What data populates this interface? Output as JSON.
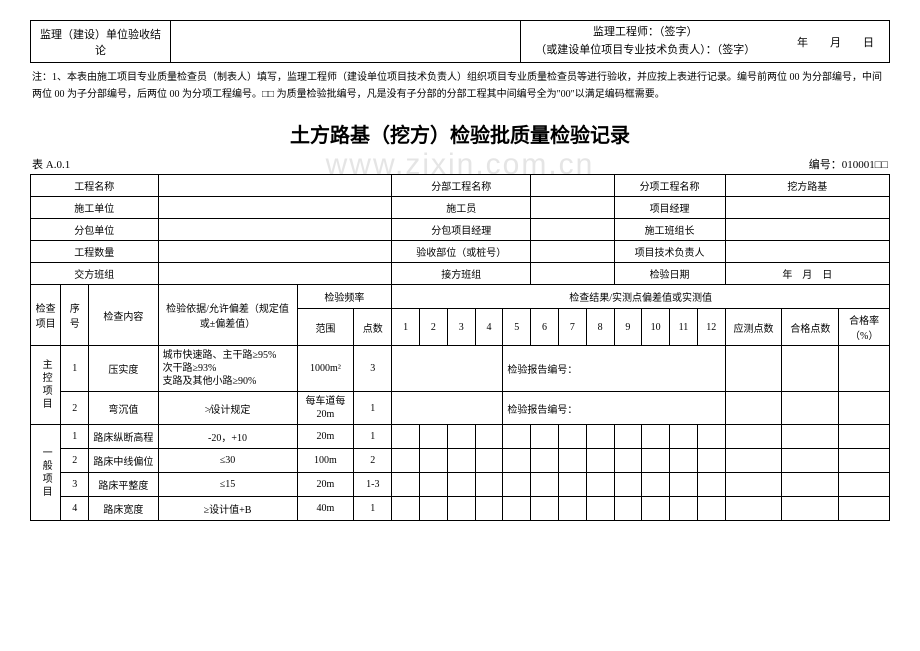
{
  "top_box": {
    "left_label": "监理（建设）单位验收结论",
    "right_line1": "监理工程师：（签字）",
    "right_line2": "（或建设单位项目专业技术负责人）：（签字）",
    "date_label": "年　　月　　日"
  },
  "note": "注：1、本表由施工项目专业质量检查员（制表人）填写，监理工程师（建设单位项目技术负责人）组织项目专业质量检查员等进行验收，并应按上表进行记录。编号前两位 00 为分部编号，中间两位 00 为子分部编号，后两位 00 为分项工程编号。□□ 为质量检验批编号，凡是没有子分部的分部工程其中间编号全为\"00\"以满足编码框需要。",
  "title": "土方路基（挖方）检验批质量检验记录",
  "watermark": "www.zixin.com.cn",
  "table_ref": "表 A.0.1",
  "serial_label": "编号：010001□□",
  "info": {
    "row1": {
      "c1": "工程名称",
      "c2": "分部工程名称",
      "c3": "分项工程名称",
      "c4": "挖方路基"
    },
    "row2": {
      "c1": "施工单位",
      "c2": "施工员",
      "c3": "项目经理",
      "c4": ""
    },
    "row3": {
      "c1": "分包单位",
      "c2": "分包项目经理",
      "c3": "施工班组长",
      "c4": ""
    },
    "row4": {
      "c1": "工程数量",
      "c2": "验收部位（或桩号）",
      "c3": "项目技术负责人",
      "c4": ""
    },
    "row5": {
      "c1": "交方班组",
      "c2": "接方班组",
      "c3": "检验日期",
      "c4": "年　月　日"
    }
  },
  "header": {
    "col_check_item": "检查项目",
    "col_seq": "序号",
    "col_content": "检查内容",
    "col_basis": "检验依据/允许偏差（规定值或±偏差值）",
    "col_freq": "检验频率",
    "col_freq_range": "范围",
    "col_freq_points": "点数",
    "col_results": "检查结果/实测点偏差值或实测值",
    "col_should": "应测点数",
    "col_pass": "合格点数",
    "col_rate": "合格率（%）",
    "nums": [
      "1",
      "2",
      "3",
      "4",
      "5",
      "6",
      "7",
      "8",
      "9",
      "10",
      "11",
      "12"
    ]
  },
  "section1": {
    "label": "主控项目",
    "rows": [
      {
        "seq": "1",
        "content": "压实度",
        "basis": "城市快速路、主干路≥95%\n次干路≥93%\n支路及其他小路≥90%",
        "range": "1000m²",
        "points": "3",
        "result_note": "检验报告编号："
      },
      {
        "seq": "2",
        "content": "弯沉值",
        "basis": "≯设计规定",
        "range": "每车道每 20m",
        "points": "1",
        "result_note": "检验报告编号："
      }
    ]
  },
  "section2": {
    "label": "一般项目",
    "rows": [
      {
        "seq": "1",
        "content": "路床纵断高程",
        "basis": "-20，+10",
        "range": "20m",
        "points": "1"
      },
      {
        "seq": "2",
        "content": "路床中线偏位",
        "basis": "≤30",
        "range": "100m",
        "points": "2"
      },
      {
        "seq": "3",
        "content": "路床平整度",
        "basis": "≤15",
        "range": "20m",
        "points": "1-3"
      },
      {
        "seq": "4",
        "content": "路床宽度",
        "basis": "≥设计值+B",
        "range": "40m",
        "points": "1"
      }
    ]
  }
}
